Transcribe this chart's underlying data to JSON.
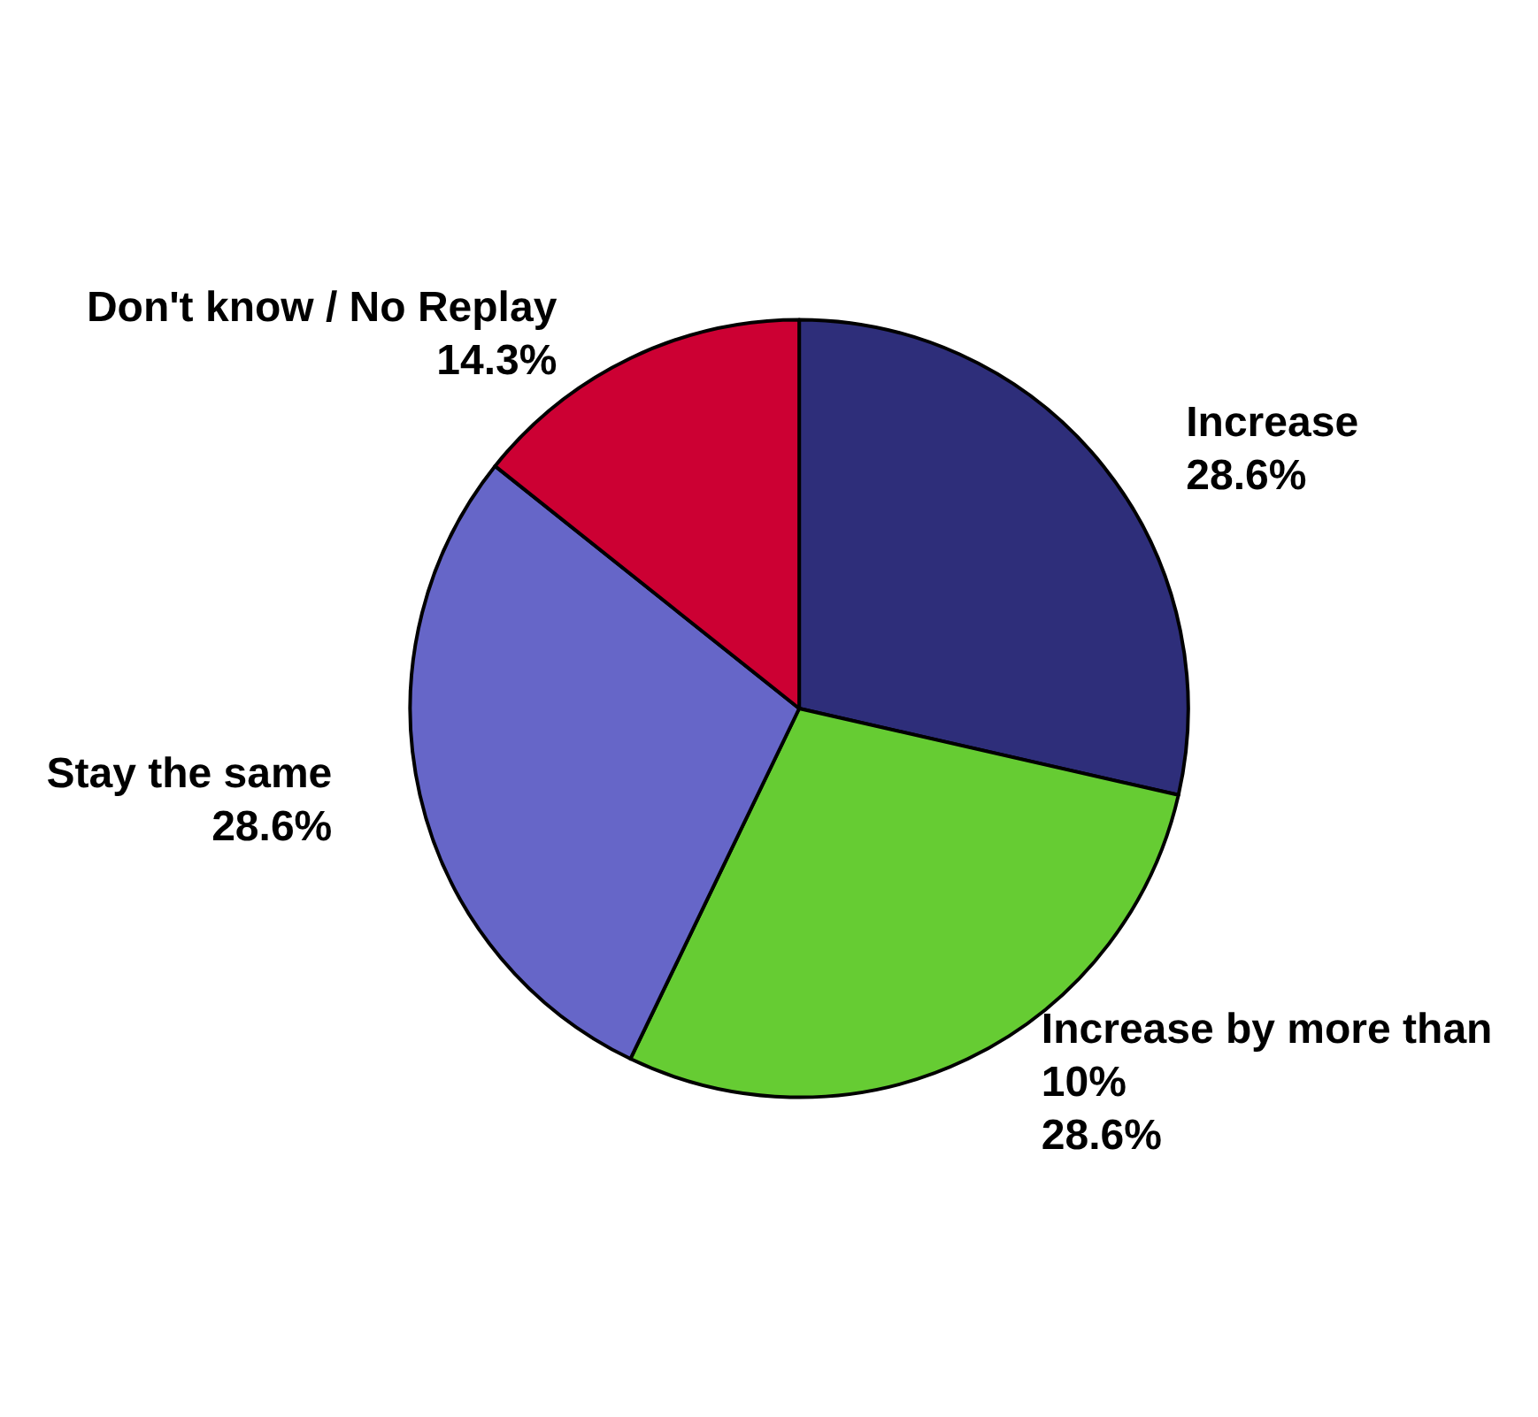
{
  "chart_data": {
    "type": "pie",
    "categories": [
      "Increase",
      "Increase by more than 10%",
      "Stay the same",
      "Don't know / No Replay"
    ],
    "values": [
      28.6,
      28.6,
      28.6,
      14.3
    ],
    "value_labels": [
      "28.6%",
      "28.6%",
      "28.6%",
      "14.3%"
    ],
    "colors": [
      "#2e2e7a",
      "#66cc33",
      "#6666c8",
      "#cc0033"
    ],
    "legend": false
  }
}
